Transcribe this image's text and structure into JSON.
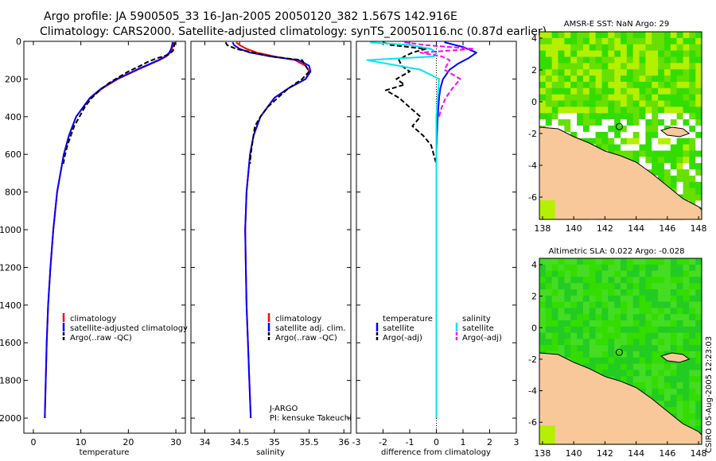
{
  "header": {
    "line1": "Argo profile: JA 5900505_33 16-Jan-2005 20050120_382 1.567S 142.916E",
    "line2": "Climatology: CARS2000. Satellite-adjusted climatology: synTS_20050116.nc (0.87d earlier)"
  },
  "credit": "CSIRO 05-Aug-2005 12:23:03",
  "colors": {
    "climatology": "#ff0000",
    "satellite": "#0000ff",
    "argo": "#000000",
    "sal_satellite": "#00e5ee",
    "sal_argo": "#ff00ff",
    "land": "#f8c89a",
    "ocean_green": "#33dd00",
    "ocean_yellow": "#b4f000",
    "cloud": "#ffffff"
  },
  "chart_data": [
    {
      "id": "temperature",
      "type": "line",
      "xlabel": "temperature",
      "ylabel": "",
      "xlim": [
        -2,
        32
      ],
      "ylim": [
        2080,
        0
      ],
      "xticks": [
        0,
        10,
        20,
        30
      ],
      "yticks": [
        0,
        200,
        400,
        600,
        800,
        1000,
        1200,
        1400,
        1600,
        1800,
        2000
      ],
      "legend": [
        "climatology",
        "satellite-adjusted climatology",
        "Argo(..raw -QC)"
      ],
      "legend_position": "lower-right",
      "series": [
        {
          "name": "climatology",
          "color": "#ff0000",
          "dash": false,
          "depth": [
            5,
            20,
            40,
            60,
            80,
            100,
            150,
            200,
            250,
            300,
            400,
            500,
            600,
            800,
            1000,
            1200,
            1400,
            1600,
            1800,
            2000
          ],
          "values": [
            29.5,
            29.4,
            29.2,
            28.8,
            28,
            26.5,
            22,
            17.8,
            14.5,
            12,
            9,
            7.5,
            6.4,
            5,
            4.2,
            3.6,
            3.1,
            2.8,
            2.6,
            2.4
          ]
        },
        {
          "name": "satellite-adjusted climatology",
          "color": "#0000ff",
          "dash": false,
          "depth": [
            5,
            20,
            40,
            60,
            80,
            100,
            150,
            200,
            250,
            300,
            400,
            500,
            600,
            800,
            1000,
            1200,
            1400,
            1600,
            1800,
            2000
          ],
          "values": [
            29.3,
            29.2,
            29,
            28.6,
            27.8,
            26.3,
            21.8,
            17.6,
            14.3,
            11.9,
            9,
            7.5,
            6.4,
            5,
            4.2,
            3.6,
            3.1,
            2.8,
            2.6,
            2.4
          ]
        },
        {
          "name": "Argo(..raw -QC)",
          "color": "#000000",
          "dash": true,
          "depth": [
            5,
            15,
            30,
            50,
            70,
            90,
            110,
            130,
            160,
            190,
            220,
            260,
            300,
            350,
            400,
            450,
            500,
            550,
            600,
            650
          ],
          "values": [
            29.8,
            29.7,
            29.6,
            29.4,
            28.5,
            26,
            24,
            22.5,
            20,
            18,
            16,
            14,
            12.3,
            10.8,
            9.7,
            8.6,
            7.9,
            7.2,
            6.7,
            6.3
          ]
        }
      ]
    },
    {
      "id": "salinity",
      "type": "line",
      "xlabel": "salinity",
      "ylabel": "",
      "xlim": [
        33.8,
        36.1
      ],
      "ylim": [
        2080,
        0
      ],
      "xticks": [
        34,
        34.5,
        35,
        35.5,
        36
      ],
      "legend": [
        "climatology",
        "satellite adj. clim.",
        "Argo(..raw -QC)"
      ],
      "legend_position": "lower-right",
      "annotation": [
        "J-ARGO",
        "PI: kensuke Takeuchi"
      ],
      "series": [
        {
          "name": "climatology",
          "color": "#ff0000",
          "dash": false,
          "depth": [
            5,
            20,
            40,
            60,
            80,
            100,
            130,
            160,
            200,
            250,
            300,
            400,
            500,
            600,
            800,
            1000,
            1200,
            1400,
            1600,
            1800,
            2000
          ],
          "values": [
            34.45,
            34.5,
            34.6,
            34.75,
            35,
            35.3,
            35.45,
            35.5,
            35.45,
            35.2,
            35.0,
            34.8,
            34.7,
            34.65,
            34.6,
            34.58,
            34.59,
            34.6,
            34.62,
            34.64,
            34.66
          ]
        },
        {
          "name": "satellite adj. clim.",
          "color": "#0000ff",
          "dash": false,
          "depth": [
            5,
            20,
            40,
            60,
            80,
            100,
            130,
            160,
            200,
            250,
            300,
            400,
            500,
            600,
            800,
            1000,
            1200,
            1400,
            1600,
            1800,
            2000
          ],
          "values": [
            34.4,
            34.42,
            34.5,
            34.65,
            34.95,
            35.35,
            35.5,
            35.52,
            35.45,
            35.2,
            35.0,
            34.8,
            34.7,
            34.65,
            34.6,
            34.58,
            34.59,
            34.6,
            34.62,
            34.64,
            34.66
          ]
        },
        {
          "name": "Argo(..raw -QC)",
          "color": "#000000",
          "dash": true,
          "depth": [
            5,
            20,
            40,
            60,
            80,
            100,
            130,
            160,
            200,
            250,
            300,
            350,
            400,
            450,
            500,
            550,
            600,
            650
          ],
          "values": [
            34.3,
            34.32,
            34.45,
            34.7,
            34.95,
            35.4,
            35.45,
            35.5,
            35.4,
            35.2,
            35.05,
            34.9,
            34.8,
            34.72,
            34.7,
            34.68,
            34.66,
            34.65
          ]
        }
      ]
    },
    {
      "id": "difference",
      "type": "line",
      "xlabel": "difference from climatology",
      "ylabel": "",
      "xlim": [
        -3,
        3
      ],
      "ylim": [
        2080,
        0
      ],
      "xticks": [
        -3,
        -2,
        -1,
        0,
        1,
        2,
        3
      ],
      "legend": [
        "temperature",
        "satellite",
        "Argo(-adj)",
        "salinity",
        "satellite",
        "Argo(-adj)"
      ],
      "legend_position": "lower-center",
      "series": [
        {
          "name": "temperature satellite",
          "color": "#0000ff",
          "dash": false,
          "depth": [
            5,
            30,
            60,
            90,
            120,
            150,
            200,
            250,
            300,
            400,
            500,
            600,
            800,
            1000,
            1500,
            2000
          ],
          "values": [
            0.3,
            1.0,
            1.5,
            1.2,
            0.8,
            0.5,
            0.25,
            0.15,
            0.1,
            0.05,
            0.02,
            0,
            0,
            0,
            0,
            0
          ]
        },
        {
          "name": "temperature Argo(-adj)",
          "color": "#000000",
          "dash": true,
          "depth": [
            5,
            20,
            40,
            60,
            80,
            100,
            130,
            160,
            200,
            230,
            260,
            300,
            350,
            400,
            450,
            500,
            550,
            600,
            650
          ],
          "values": [
            -2,
            -1.7,
            -0.4,
            -0.9,
            -1.2,
            -1.4,
            -1.3,
            -1.0,
            -1.5,
            -1.2,
            -1.9,
            -1.4,
            -1.0,
            -0.6,
            -0.9,
            -0.5,
            -0.2,
            -0.1,
            0
          ]
        },
        {
          "name": "salinity satellite",
          "color": "#00e5ee",
          "dash": false,
          "depth": [
            5,
            20,
            40,
            60,
            80,
            100,
            150,
            200,
            300,
            400,
            500,
            600,
            800,
            1000,
            1500,
            2000
          ],
          "values": [
            -2.5,
            -1.0,
            -0.2,
            0.0,
            -0.1,
            -2.6,
            -0.6,
            0.1,
            0.05,
            0,
            0,
            0,
            0,
            0,
            0,
            0
          ]
        },
        {
          "name": "salinity Argo(-adj)",
          "color": "#ff00ff",
          "dash": true,
          "depth": [
            5,
            20,
            40,
            60,
            80,
            100,
            150,
            200,
            250,
            300,
            350,
            400
          ],
          "values": [
            -1.2,
            -0.4,
            1.4,
            -0.6,
            0.2,
            0.5,
            0.3,
            0.9,
            0.6,
            0.35,
            0.2,
            0.1
          ]
        }
      ]
    },
    {
      "id": "sst_map",
      "type": "heatmap",
      "title": "AMSR-E SST: NaN Argo: 29",
      "xlim": [
        137.8,
        148.2
      ],
      "ylim": [
        -7.4,
        4.4
      ],
      "xticks": [
        138,
        140,
        142,
        144,
        146,
        148
      ],
      "yticks": [
        4,
        2,
        0,
        -2,
        -4,
        -6
      ],
      "argo_position": [
        142.916,
        -1.567
      ]
    },
    {
      "id": "sla_map",
      "type": "heatmap",
      "title": "Altimetric SLA: 0.022 Argo: -0.028",
      "xlim": [
        137.8,
        148.2
      ],
      "ylim": [
        -7.4,
        4.4
      ],
      "xticks": [
        138,
        140,
        142,
        144,
        146,
        148
      ],
      "yticks": [
        4,
        2,
        0,
        -2,
        -4,
        -6
      ],
      "argo_position": [
        142.916,
        -1.567
      ]
    }
  ]
}
